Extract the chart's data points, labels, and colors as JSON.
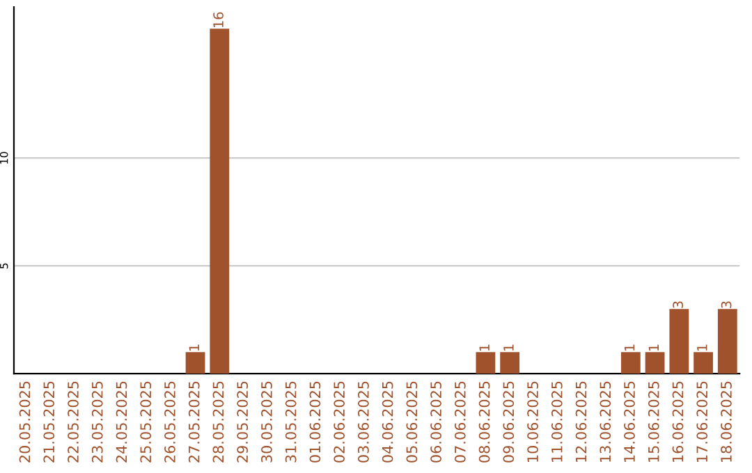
{
  "chart_data": {
    "type": "bar",
    "categories": [
      "20.05.2025",
      "21.05.2025",
      "22.05.2025",
      "23.05.2025",
      "24.05.2025",
      "25.05.2025",
      "26.05.2025",
      "27.05.2025",
      "28.05.2025",
      "29.05.2025",
      "30.05.2025",
      "31.05.2025",
      "01.06.2025",
      "02.06.2025",
      "03.06.2025",
      "04.06.2025",
      "05.06.2025",
      "06.06.2025",
      "07.06.2025",
      "08.06.2025",
      "09.06.2025",
      "10.06.2025",
      "11.06.2025",
      "12.06.2025",
      "13.06.2025",
      "14.06.2025",
      "15.06.2025",
      "16.06.2025",
      "17.06.2025",
      "18.06.2025"
    ],
    "values": [
      0,
      0,
      0,
      0,
      0,
      0,
      0,
      1,
      16,
      0,
      0,
      0,
      0,
      0,
      0,
      0,
      0,
      0,
      0,
      1,
      1,
      0,
      0,
      0,
      0,
      1,
      1,
      3,
      1,
      3
    ],
    "value_labels": [
      null,
      null,
      null,
      null,
      null,
      null,
      null,
      "1",
      "16",
      null,
      null,
      null,
      null,
      null,
      null,
      null,
      null,
      null,
      null,
      "1",
      "1",
      null,
      null,
      null,
      null,
      "1",
      "1",
      "3",
      "1",
      "3"
    ],
    "color": "#a0522d",
    "ylim": [
      0,
      17
    ],
    "yticks": [
      5,
      10
    ],
    "grid": "y"
  }
}
